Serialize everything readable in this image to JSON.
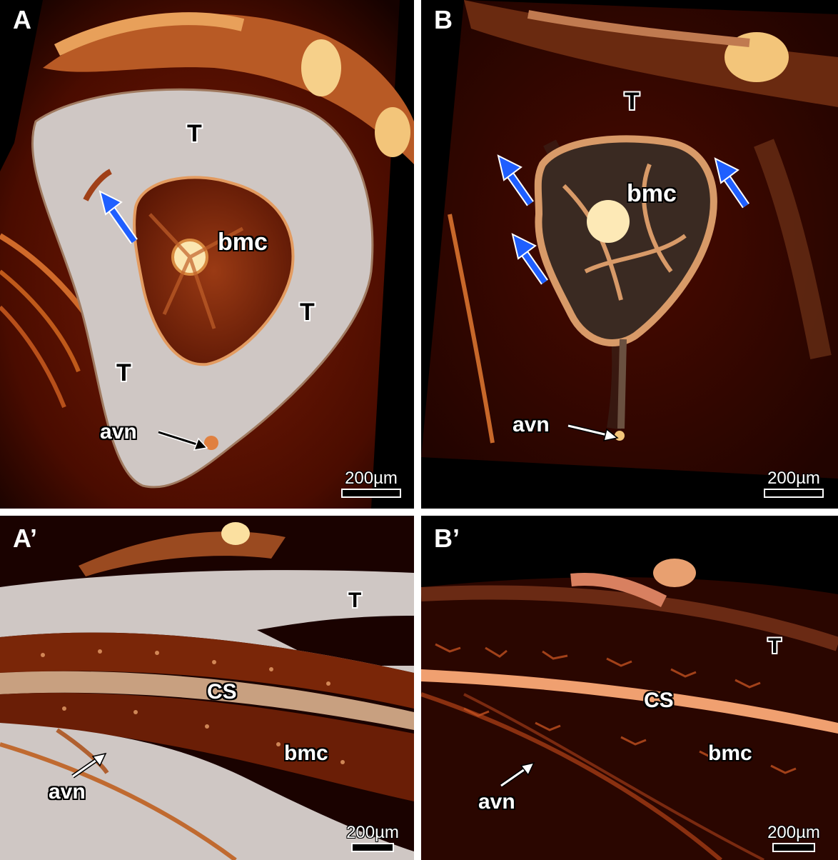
{
  "panels": {
    "A": {
      "letter": "A",
      "labels": {
        "t1": "T",
        "t2": "T",
        "t3": "T",
        "bmc": "bmc",
        "avn": "avn"
      },
      "scale_bar": "200µm"
    },
    "B": {
      "letter": "B",
      "labels": {
        "t1": "T",
        "bmc": "bmc",
        "avn": "avn"
      },
      "scale_bar": "200µm"
    },
    "A_prime": {
      "letter": "A’",
      "labels": {
        "t1": "T",
        "cs": "CS",
        "bmc": "bmc",
        "avn": "avn"
      },
      "scale_bar": "200µm"
    },
    "B_prime": {
      "letter": "B’",
      "labels": {
        "t1": "T",
        "cs": "CS",
        "bmc": "bmc",
        "avn": "avn"
      },
      "scale_bar": "200µm"
    }
  },
  "colors": {
    "bone": "#c9c3c2",
    "tissue_dark": "#3a0800",
    "tissue_mid": "#8a2a08",
    "vessel_bright": "#f3c57a",
    "arrow_blue": "#1f5fff"
  }
}
